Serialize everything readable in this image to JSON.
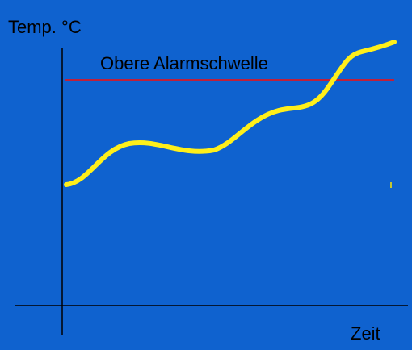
{
  "axes": {
    "y_label": "Temp. °C",
    "x_label": "Zeit"
  },
  "threshold": {
    "label": "Obere Alarmschwelle"
  }
}
